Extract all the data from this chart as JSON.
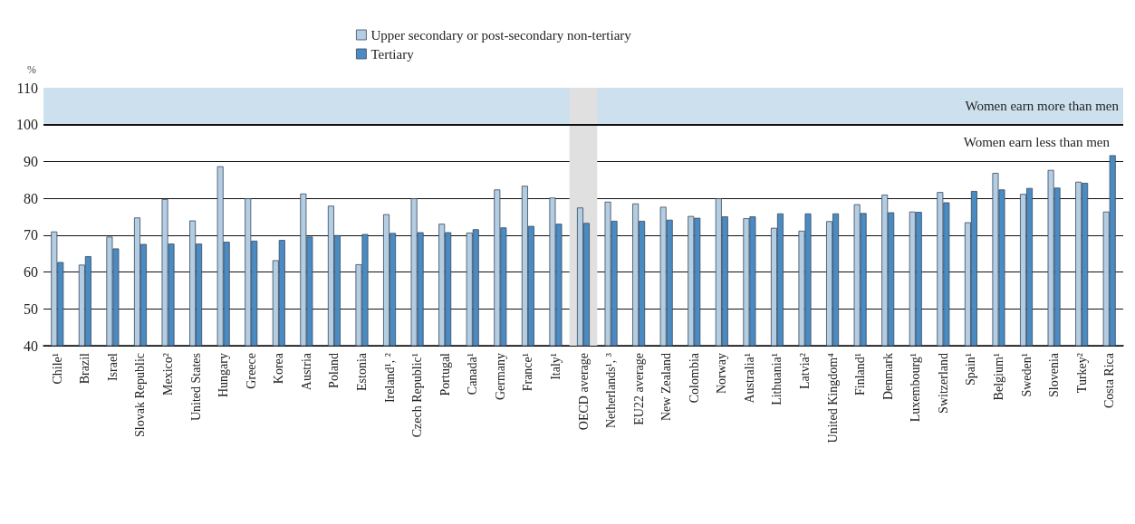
{
  "chart_data": {
    "type": "bar",
    "ylabel": "%",
    "categories": [
      "Chile¹",
      "Brazil",
      "Israel",
      "Slovak Republic",
      "Mexico²",
      "United States",
      "Hungary",
      "Greece",
      "Korea",
      "Austria",
      "Poland",
      "Estonia",
      "Ireland¹, ²",
      "Czech Republic¹",
      "Portugal",
      "Canada¹",
      "Germany",
      "France¹",
      "Italy¹",
      "OECD average",
      "Netherlands¹, ³",
      "EU22 average",
      "New Zealand",
      "Colombia",
      "Norway",
      "Australia¹",
      "Lithuania¹",
      "Latvia²",
      "United Kingdom⁴",
      "Finland¹",
      "Denmark",
      "Luxembourg¹",
      "Switzerland",
      "Spain¹",
      "Belgium¹",
      "Sweden¹",
      "Slovenia",
      "Turkey²",
      "Costa Rica"
    ],
    "series": [
      {
        "name": "Upper secondary or post-secondary non-tertiary",
        "color": "#b3cde3",
        "values": [
          71,
          62,
          69.6,
          74.8,
          79.8,
          74,
          88.7,
          80,
          63.2,
          81.3,
          78,
          62.1,
          75.7,
          80,
          73.1,
          70.7,
          82.4,
          83.4,
          80.2,
          77.5,
          79.1,
          78.6,
          77.7,
          75.2,
          80,
          74.6,
          72,
          71.2,
          73.8,
          78.4,
          81,
          76.4,
          81.7,
          73.5,
          86.9,
          81.2,
          87.7,
          84.5,
          76.4
        ]
      },
      {
        "name": "Tertiary",
        "color": "#4a8bc4",
        "values": [
          62.7,
          64.3,
          66.4,
          67.6,
          67.7,
          67.7,
          68.2,
          68.5,
          68.7,
          69.6,
          70,
          70.3,
          70.6,
          70.8,
          70.8,
          71.6,
          72.1,
          72.5,
          73.1,
          73.3,
          73.9,
          73.9,
          74.2,
          74.7,
          75.1,
          75.1,
          75.9,
          75.9,
          75.9,
          76,
          76.2,
          76.3,
          78.9,
          82,
          82.4,
          82.8,
          82.9,
          84.2,
          91.7
        ]
      }
    ],
    "ylim": [
      40,
      110
    ],
    "yticks": [
      40,
      50,
      60,
      70,
      80,
      90,
      100,
      110
    ],
    "grid": "y",
    "legend": "top",
    "bands": [
      {
        "axis": "y",
        "from": 100,
        "to": 110,
        "label": "Women earn more than men",
        "color": "#cde0ee"
      },
      {
        "axis": "x",
        "from": "OECD average",
        "to": "OECD average",
        "color": "#e0e0e0"
      }
    ],
    "ref_lines": [
      {
        "axis": "y",
        "value": 100,
        "label": "Women earn less than men"
      }
    ]
  }
}
